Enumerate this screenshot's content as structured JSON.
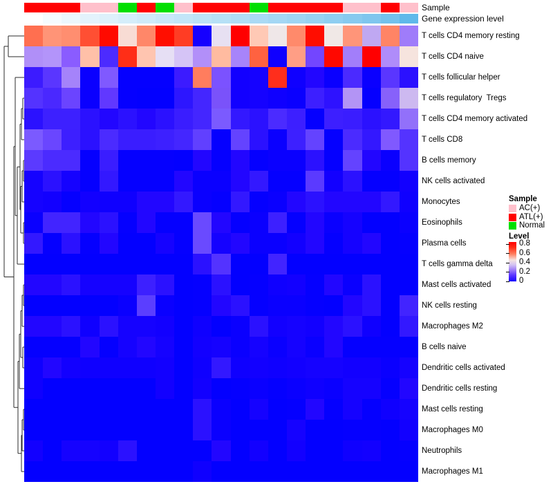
{
  "annotations": {
    "sample_label": "Sample",
    "gene_label": "Gene expression level",
    "sample_cells": [
      "ATL(+)",
      "ATL(+)",
      "ATL(+)",
      "AC(+)",
      "AC(+)",
      "Normal",
      "ATL(+)",
      "Normal",
      "AC(+)",
      "ATL(+)",
      "ATL(+)",
      "ATL(+)",
      "Normal",
      "ATL(+)",
      "ATL(+)",
      "ATL(+)",
      "ATL(+)",
      "AC(+)",
      "AC(+)",
      "ATL(+)",
      "AC(+)"
    ],
    "gene_colors": [
      "#FFFFFF",
      "#F5FBFE",
      "#ECF7FD",
      "#E3F3FC",
      "#DDF1FB",
      "#D5EEFA",
      "#CFEBFA",
      "#C8E8F9",
      "#C2E6F8",
      "#BCE3F7",
      "#B6E0F6",
      "#B0DDF5",
      "#AADAF5",
      "#A4D7F4",
      "#9ED5F3",
      "#97D2F2",
      "#8FCEF1",
      "#87CAEF",
      "#7FC6EE",
      "#73C1EC",
      "#5FB9EA"
    ]
  },
  "legend": {
    "sample_title": "Sample",
    "sample_color_map": {
      "AC(+)": "#FFC0CB",
      "ATL(+)": "#FF0000",
      "Normal": "#00DF00"
    },
    "sample_items": [
      {
        "label": "AC(+)",
        "color": "#FFC0CB"
      },
      {
        "label": "ATL(+)",
        "color": "#FF0000"
      },
      {
        "label": "Normal",
        "color": "#00DF00"
      }
    ],
    "level_title": "Level",
    "level_ticks": [
      "0.8",
      "0.6",
      "0.4",
      "0.2",
      "0"
    ],
    "level_gradient": [
      "#FF0000 0%",
      "#FF2C16 14%",
      "#FF7C5C 30%",
      "#F6E3E0 46%",
      "#D3C3F2 58%",
      "#A382F7 70%",
      "#5C36FF 84%",
      "#1502FF 100%"
    ]
  },
  "chart_data": {
    "type": "heatmap",
    "title": "",
    "columns": 21,
    "legend_position": "right",
    "value_scale": {
      "name": "Level",
      "min": 0,
      "max": 0.8,
      "low_color": "#0300FF",
      "mid_color": "#F6E3E0",
      "high_color": "#FF0000"
    },
    "column_annotation_sample": [
      "ATL(+)",
      "ATL(+)",
      "ATL(+)",
      "AC(+)",
      "AC(+)",
      "Normal",
      "ATL(+)",
      "Normal",
      "AC(+)",
      "ATL(+)",
      "ATL(+)",
      "ATL(+)",
      "Normal",
      "ATL(+)",
      "ATL(+)",
      "ATL(+)",
      "ATL(+)",
      "AC(+)",
      "AC(+)",
      "ATL(+)",
      "AC(+)"
    ],
    "column_annotation_gene_expression": "continuous white-to-skyblue gradient increasing left to right",
    "row_labels": [
      "T cells CD4 memory resting",
      "T cells CD4 naive",
      "T cells follicular helper",
      "T cells regulatory  Tregs",
      "T cells CD4 memory activated",
      "T cells CD8",
      "B cells memory",
      "NK cells activated",
      "Monocytes",
      "Eosinophils",
      "Plasma cells",
      "T cells gamma delta",
      "Mast cells activated",
      "NK cells resting",
      "Macrophages M2",
      "B cells naive",
      "Dendritic cells activated",
      "Dendritic cells resting",
      "Mast cells resting",
      "Macrophages M0",
      "Neutrophils",
      "Macrophages M1"
    ],
    "matrix_colors": [
      [
        "#FF6F50",
        "#FF9477",
        "#FF8E70",
        "#FF4F33",
        "#FF0A00",
        "#F8DCD4",
        "#FF8769",
        "#FF0E00",
        "#FF3D24",
        "#1500FF",
        "#E7E0F2",
        "#FF0000",
        "#FFC9B5",
        "#EFE7E8",
        "#FF8A6B",
        "#FF0D00",
        "#F0E8E6",
        "#FF9579",
        "#BFA8F2",
        "#FF8465",
        "#9F7CFA"
      ],
      [
        "#B08FF8",
        "#B394FA",
        "#8A5CFF",
        "#FFC0A8",
        "#4C2BFF",
        "#FF2E17",
        "#FFC5B0",
        "#E6DFF4",
        "#D5C4F6",
        "#B28FF9",
        "#FFBBA0",
        "#A784FA",
        "#FF6240",
        "#0F00FF",
        "#FF9E85",
        "#7346FF",
        "#FF0800",
        "#A27EFA",
        "#FF0000",
        "#AF8CFA",
        "#F6E4DE"
      ],
      [
        "#3C1BFF",
        "#5A36FF",
        "#A583FA",
        "#0A00FF",
        "#8059FF",
        "#0500FF",
        "#0500FF",
        "#0500FF",
        "#3C1BFF",
        "#FF7D5E",
        "#7B52FF",
        "#1200FF",
        "#1502FF",
        "#FF2E1C",
        "#0F00FF",
        "#2206FF",
        "#0A00FF",
        "#4B2AFF",
        "#0A00FF",
        "#5A36FF",
        "#2B11FF"
      ],
      [
        "#5433FF",
        "#4A28FF",
        "#6B44FF",
        "#0A00FF",
        "#6138FF",
        "#0500FF",
        "#0300FF",
        "#0300FF",
        "#2D16FF",
        "#4426FF",
        "#7A52FA",
        "#1200FF",
        "#1502FF",
        "#0F00FF",
        "#0A00FF",
        "#3D1FFF",
        "#2E12FF",
        "#B394F5",
        "#0500FF",
        "#8761FA",
        "#CDB9F0"
      ],
      [
        "#2B11FF",
        "#3D20FF",
        "#3D20FF",
        "#2B11FF",
        "#2206FF",
        "#2B11FF",
        "#2206FF",
        "#2B11FF",
        "#3A1DFF",
        "#4426FF",
        "#7B5AFF",
        "#3318FF",
        "#2B11FF",
        "#4B2BFF",
        "#3D1FFF",
        "#0500FF",
        "#3D1FFF",
        "#3A1DFF",
        "#2B11FF",
        "#3318FF",
        "#9270FA"
      ],
      [
        "#7B5AFF",
        "#6A46FF",
        "#3D1FFF",
        "#2B11FF",
        "#4B2BFF",
        "#3A1DFF",
        "#3A1DFF",
        "#3D20FF",
        "#4426FF",
        "#6140FF",
        "#0500FF",
        "#6443FF",
        "#2B11FF",
        "#0A00FF",
        "#3D20FF",
        "#6443FF",
        "#0500FF",
        "#4B2BFF",
        "#3318FF",
        "#8059FF",
        "#5433FF"
      ],
      [
        "#5B3AFF",
        "#4B2BFF",
        "#4B2BFF",
        "#0500FF",
        "#3A1DFF",
        "#0500FF",
        "#0500FF",
        "#0500FF",
        "#0300FF",
        "#2206FF",
        "#0500FF",
        "#2206FF",
        "#0500FF",
        "#0A00FF",
        "#0A00FF",
        "#2B11FF",
        "#0500FF",
        "#6443FF",
        "#2206FF",
        "#0A00FF",
        "#5433FF"
      ],
      [
        "#1502FF",
        "#2B11FF",
        "#1502FF",
        "#0500FF",
        "#3318FF",
        "#0500FF",
        "#0500FF",
        "#0500FF",
        "#2206FF",
        "#0A00FF",
        "#0A00FF",
        "#2206FF",
        "#3318FF",
        "#0500FF",
        "#0500FF",
        "#5B3AFF",
        "#1200FF",
        "#2B11FF",
        "#0500FF",
        "#0500FF",
        "#1200FF"
      ],
      [
        "#1502FF",
        "#1200FF",
        "#0500FF",
        "#1200FF",
        "#0F00FF",
        "#0F00FF",
        "#2206FF",
        "#2206FF",
        "#3318FF",
        "#0A00FF",
        "#0500FF",
        "#3318FF",
        "#0500FF",
        "#0A00FF",
        "#2206FF",
        "#2B11FF",
        "#2206FF",
        "#2206FF",
        "#2206FF",
        "#3318FF",
        "#0F00FF"
      ],
      [
        "#0A00FF",
        "#4224FF",
        "#4224FF",
        "#2206FF",
        "#2B11FF",
        "#0500FF",
        "#2206FF",
        "#0500FF",
        "#0500FF",
        "#6A4AFF",
        "#2206FF",
        "#0500FF",
        "#0A00FF",
        "#3D20FF",
        "#0500FF",
        "#2206FF",
        "#0A00FF",
        "#1502FF",
        "#0300FF",
        "#0300FF",
        "#0A00FF"
      ],
      [
        "#3318FF",
        "#0500FF",
        "#2B11FF",
        "#0500FF",
        "#2206FF",
        "#0300FF",
        "#0300FF",
        "#1502FF",
        "#0500FF",
        "#6A4AFF",
        "#1502FF",
        "#2206FF",
        "#0A00FF",
        "#0A00FF",
        "#1200FF",
        "#2206FF",
        "#0500FF",
        "#1502FF",
        "#2206FF",
        "#0300FF",
        "#0500FF"
      ],
      [
        "#0300FF",
        "#0300FF",
        "#0300FF",
        "#0300FF",
        "#0300FF",
        "#0300FF",
        "#0300FF",
        "#0300FF",
        "#0300FF",
        "#2B11FF",
        "#5433FF",
        "#0300FF",
        "#0300FF",
        "#4224FF",
        "#0300FF",
        "#0300FF",
        "#0300FF",
        "#0300FF",
        "#0300FF",
        "#0300FF",
        "#0300FF"
      ],
      [
        "#2206FF",
        "#2206FF",
        "#2B11FF",
        "#1502FF",
        "#1502FF",
        "#1502FF",
        "#3D20FF",
        "#2B11FF",
        "#0300FF",
        "#0500FF",
        "#2B11FF",
        "#0300FF",
        "#0500FF",
        "#0F00FF",
        "#1200FF",
        "#0500FF",
        "#2206FF",
        "#0A00FF",
        "#2B11FF",
        "#0300FF",
        "#0300FF"
      ],
      [
        "#0300FF",
        "#0300FF",
        "#0300FF",
        "#0300FF",
        "#0300FF",
        "#0A00FF",
        "#5B3EFF",
        "#0A00FF",
        "#0300FF",
        "#0500FF",
        "#2206FF",
        "#2B11FF",
        "#0500FF",
        "#0A00FF",
        "#0A00FF",
        "#0500FF",
        "#0300FF",
        "#2206FF",
        "#2B11FF",
        "#0300FF",
        "#4224FF"
      ],
      [
        "#2206FF",
        "#2206FF",
        "#2B11FF",
        "#0F00FF",
        "#2B11FF",
        "#1502FF",
        "#1502FF",
        "#1200FF",
        "#0300FF",
        "#0F00FF",
        "#0300FF",
        "#0A00FF",
        "#2B11FF",
        "#1200FF",
        "#1502FF",
        "#1200FF",
        "#2206FF",
        "#2B11FF",
        "#0F00FF",
        "#0300FF",
        "#3318FF"
      ],
      [
        "#0500FF",
        "#0500FF",
        "#0500FF",
        "#2206FF",
        "#0500FF",
        "#1502FF",
        "#2206FF",
        "#1502FF",
        "#0300FF",
        "#1200FF",
        "#1502FF",
        "#0A00FF",
        "#1502FF",
        "#0A00FF",
        "#1502FF",
        "#0A00FF",
        "#2206FF",
        "#0500FF",
        "#0500FF",
        "#0500FF",
        "#0500FF"
      ],
      [
        "#0F00FF",
        "#2206FF",
        "#1200FF",
        "#0F00FF",
        "#0F00FF",
        "#0F00FF",
        "#0F00FF",
        "#1200FF",
        "#0300FF",
        "#0F00FF",
        "#3318FF",
        "#0F00FF",
        "#1200FF",
        "#0F00FF",
        "#1200FF",
        "#1502FF",
        "#1502FF",
        "#1200FF",
        "#1200FF",
        "#0A00FF",
        "#1502FF"
      ],
      [
        "#0F00FF",
        "#0300FF",
        "#0300FF",
        "#0300FF",
        "#0300FF",
        "#0300FF",
        "#0300FF",
        "#1200FF",
        "#0300FF",
        "#1200FF",
        "#0300FF",
        "#0500FF",
        "#0A00FF",
        "#0500FF",
        "#0A00FF",
        "#0F00FF",
        "#0A00FF",
        "#1502FF",
        "#1502FF",
        "#0500FF",
        "#2206FF"
      ],
      [
        "#0300FF",
        "#0300FF",
        "#0300FF",
        "#0300FF",
        "#0300FF",
        "#0300FF",
        "#0300FF",
        "#0300FF",
        "#0300FF",
        "#2B11FF",
        "#0A00FF",
        "#0300FF",
        "#1502FF",
        "#0300FF",
        "#0500FF",
        "#2206FF",
        "#0500FF",
        "#1502FF",
        "#0500FF",
        "#0F00FF",
        "#1502FF"
      ],
      [
        "#0300FF",
        "#0300FF",
        "#0300FF",
        "#0300FF",
        "#0300FF",
        "#0300FF",
        "#0300FF",
        "#0300FF",
        "#0300FF",
        "#2B11FF",
        "#0A00FF",
        "#0300FF",
        "#0300FF",
        "#0300FF",
        "#1502FF",
        "#0300FF",
        "#0300FF",
        "#0500FF",
        "#0500FF",
        "#0300FF",
        "#1200FF"
      ],
      [
        "#1200FF",
        "#0300FF",
        "#1502FF",
        "#1502FF",
        "#1200FF",
        "#2B11FF",
        "#0300FF",
        "#0300FF",
        "#0300FF",
        "#0300FF",
        "#2206FF",
        "#0300FF",
        "#1200FF",
        "#0300FF",
        "#1200FF",
        "#0300FF",
        "#0300FF",
        "#0F00FF",
        "#1200FF",
        "#0300FF",
        "#0500FF"
      ],
      [
        "#0300FF",
        "#0300FF",
        "#0300FF",
        "#0300FF",
        "#0300FF",
        "#0300FF",
        "#0300FF",
        "#0300FF",
        "#0300FF",
        "#0F00FF",
        "#0300FF",
        "#0300FF",
        "#0300FF",
        "#0300FF",
        "#0300FF",
        "#0300FF",
        "#0300FF",
        "#0300FF",
        "#0300FF",
        "#0300FF",
        "#0300FF"
      ]
    ],
    "row_dendrogram": {
      "x": 6,
      "c": [
        {
          "x": 12,
          "c": [
            {
              "leaf": 0
            },
            {
              "leaf": 1
            }
          ]
        },
        {
          "x": 20,
          "c": [
            {
              "x": 22,
              "c": [
                {
                  "leaf": 2
                },
                {
                  "x": 25,
                  "c": [
                    {
                      "x": 29,
                      "c": [
                        {
                          "x": 31,
                          "c": [
                            {
                              "x": 33,
                              "c": [
                                {
                                  "leaf": 3
                                },
                                {
                                  "leaf": 4
                                }
                              ]
                            },
                            {
                              "leaf": 5
                            }
                          ]
                        },
                        {
                          "x": 30,
                          "c": [
                            {
                              "x": 32,
                              "c": [
                                {
                                  "x": 34,
                                  "c": [
                                    {
                                      "leaf": 6
                                    },
                                    {
                                      "leaf": 7
                                    }
                                  ]
                                },
                                {
                                  "leaf": 8
                                }
                              ]
                            },
                            {
                              "x": 34,
                              "c": [
                                {
                                  "leaf": 9
                                },
                                {
                                  "leaf": 10
                                }
                              ]
                            }
                          ]
                        }
                      ]
                    },
                    {
                      "leaf": 11
                    }
                  ]
                }
              ]
            },
            {
              "x": 26,
              "c": [
                {
                  "x": 28,
                  "c": [
                    {
                      "x": 30,
                      "c": [
                        {
                          "x": 32,
                          "c": [
                            {
                              "x": 34,
                              "c": [
                                {
                                  "leaf": 12
                                },
                                {
                                  "leaf": 13
                                }
                              ]
                            },
                            {
                              "leaf": 14
                            }
                          ]
                        },
                        {
                          "x": 33,
                          "c": [
                            {
                              "leaf": 15
                            },
                            {
                              "leaf": 16
                            }
                          ]
                        }
                      ]
                    },
                    {
                      "leaf": 17
                    }
                  ]
                },
                {
                  "x": 31,
                  "c": [
                    {
                      "x": 32,
                      "c": [
                        {
                          "x": 34,
                          "c": [
                            {
                              "leaf": 18
                            },
                            {
                              "leaf": 19
                            }
                          ]
                        },
                        {
                          "leaf": 20
                        }
                      ]
                    },
                    {
                      "leaf": 21
                    }
                  ]
                }
              ]
            }
          ]
        }
      ]
    }
  }
}
